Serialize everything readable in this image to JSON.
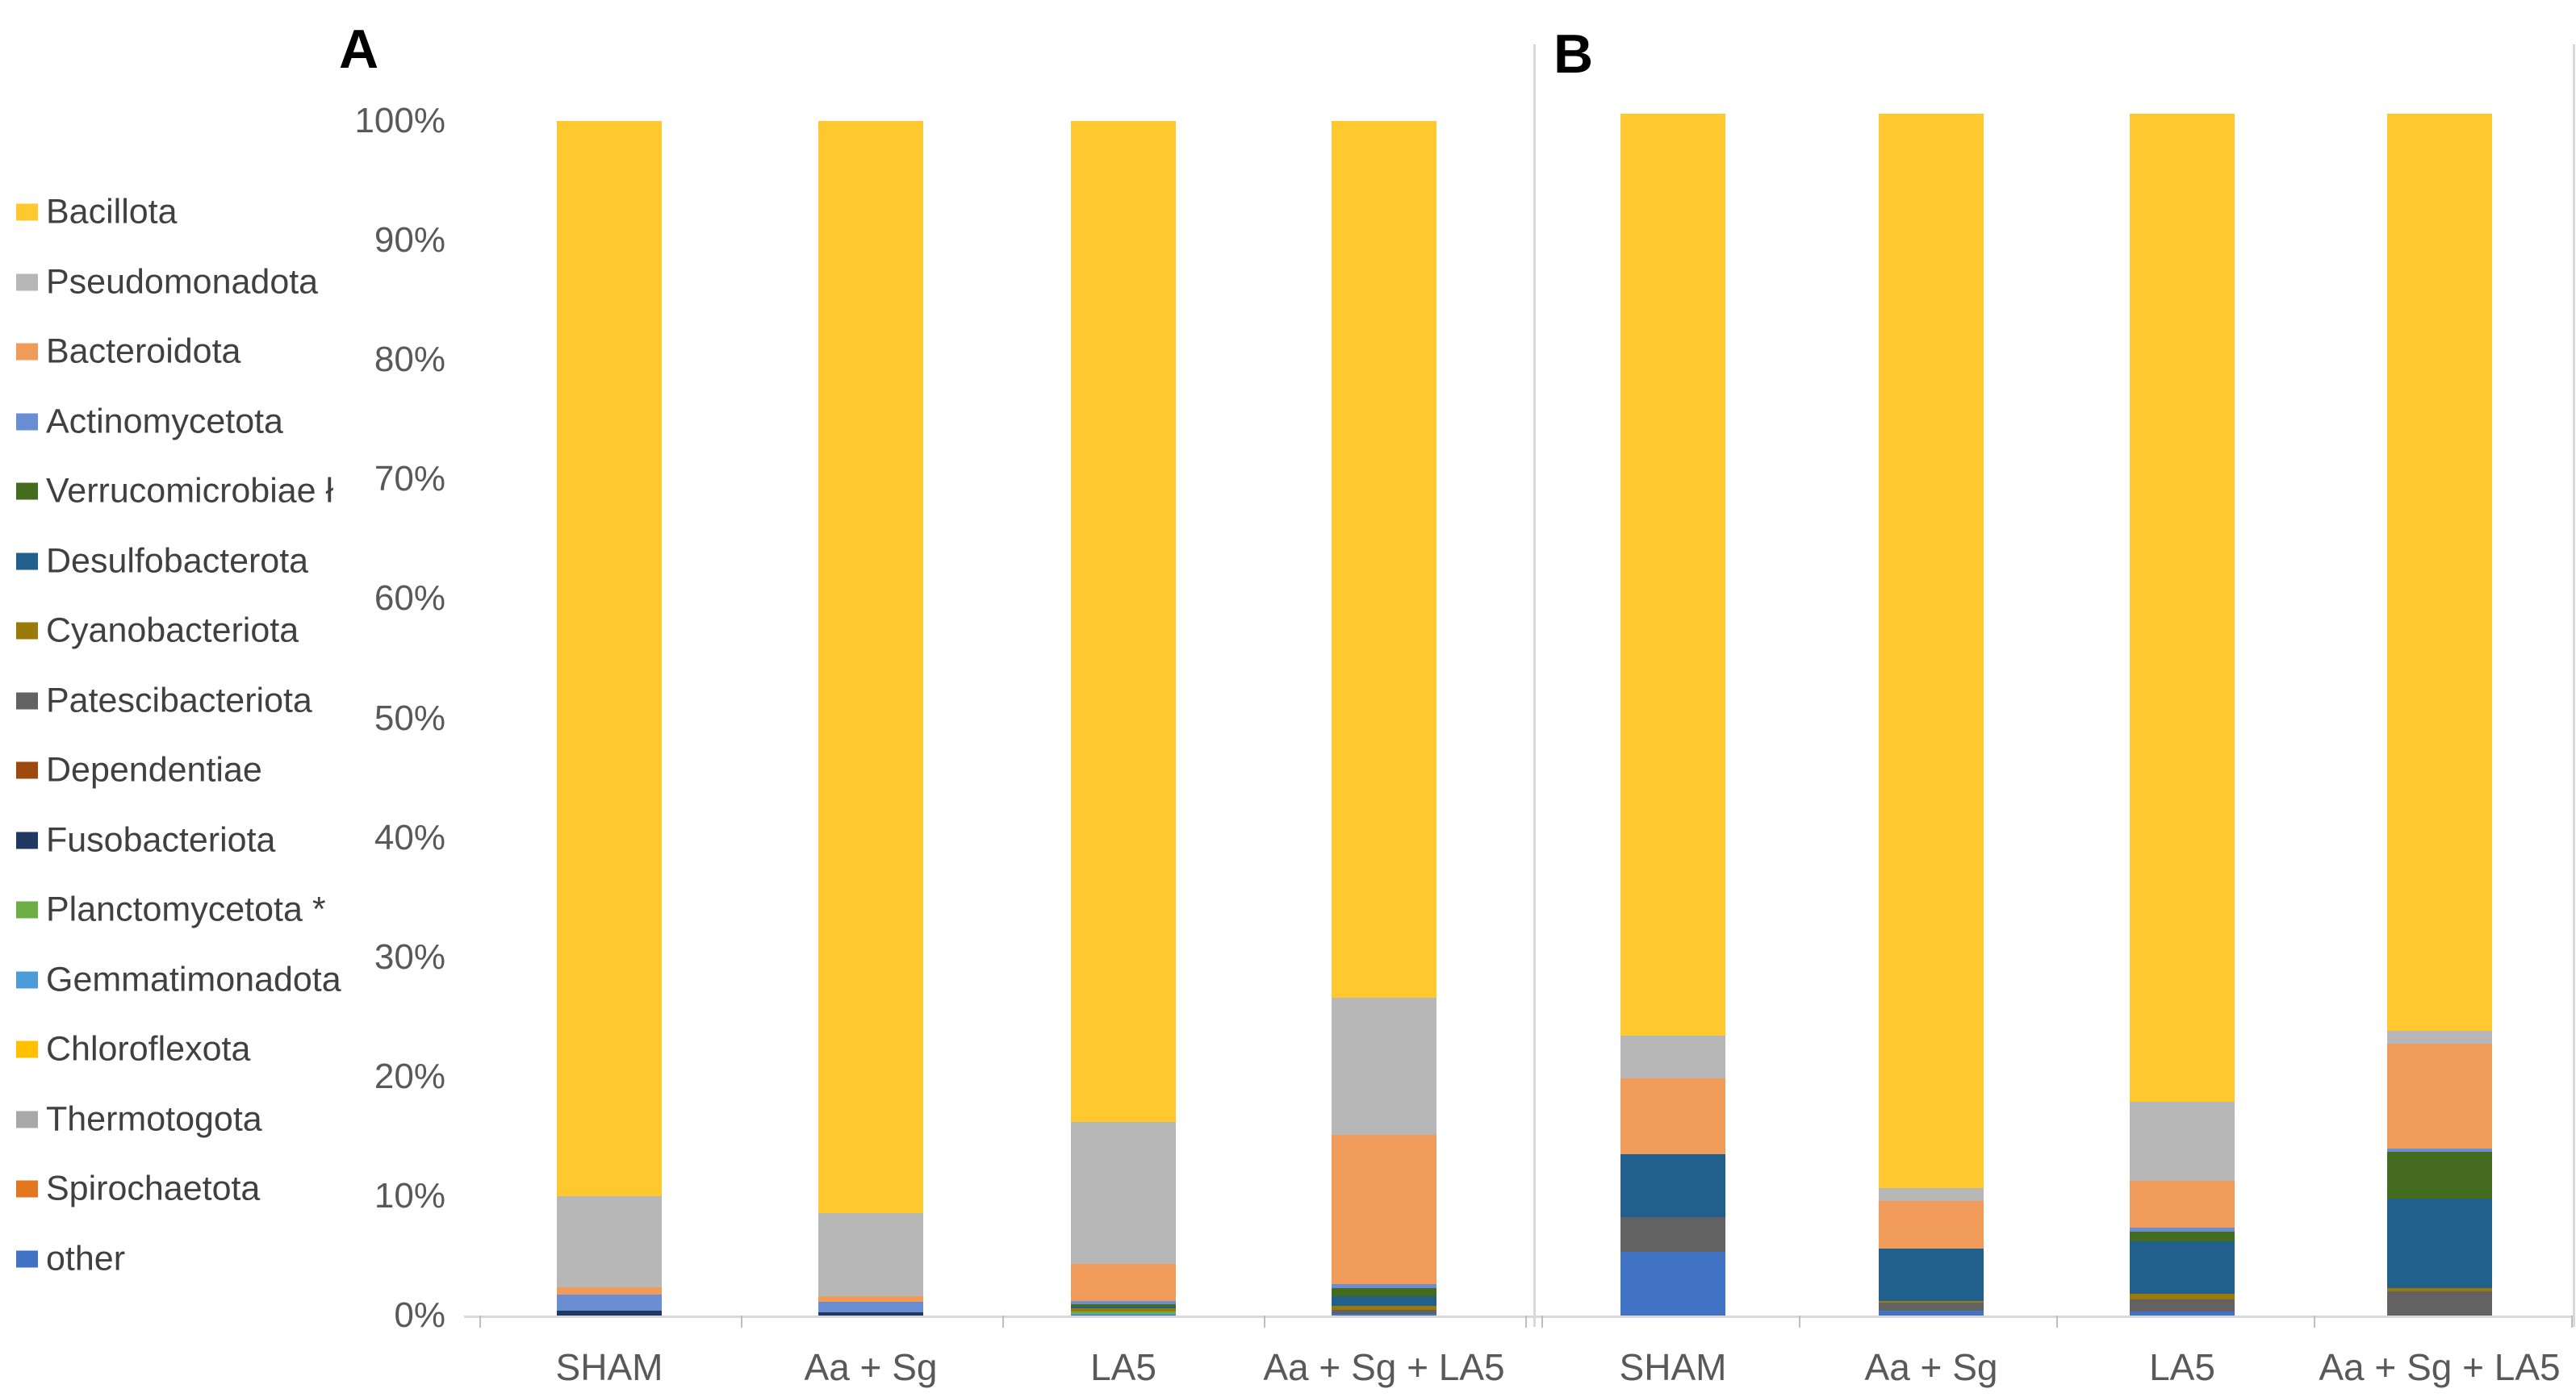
{
  "figure": {
    "panel_a_label": "A",
    "panel_b_label": "B"
  },
  "y_axis": {
    "tick_labels": [
      "100%",
      "90%",
      "80%",
      "70%",
      "60%",
      "50%",
      "40%",
      "30%",
      "20%",
      "10%",
      "0%"
    ]
  },
  "legend": [
    {
      "label": "Bacillota",
      "color": "#FFC82E"
    },
    {
      "label": "Pseudomonadota",
      "color": "#B7B7B7"
    },
    {
      "label": "Bacteroidota",
      "color": "#F09B59"
    },
    {
      "label": "Actinomycetota",
      "color": "#6A8ED1"
    },
    {
      "label": "Verrucomicrobiae ł",
      "color": "#456B1E"
    },
    {
      "label": "Desulfobacterota",
      "color": "#215F8D"
    },
    {
      "label": "Cyanobacteriota",
      "color": "#9A7A08"
    },
    {
      "label": "Patescibacteriota",
      "color": "#626262"
    },
    {
      "label": "Dependentiae",
      "color": "#9E4A0F"
    },
    {
      "label": "Fusobacteriota",
      "color": "#1F3864"
    },
    {
      "label": "Planctomycetota *",
      "color": "#6DAE45"
    },
    {
      "label": "Gemmatimonadota",
      "color": "#4C9CD9"
    },
    {
      "label": "Chloroflexota",
      "color": "#FFC000"
    },
    {
      "label": "Thermotogota",
      "color": "#A8A8A8"
    },
    {
      "label": "Spirochaetota",
      "color": "#E2771F"
    },
    {
      "label": "other",
      "color": "#4173C4"
    }
  ],
  "chart_data": [
    {
      "type": "bar",
      "stacked": true,
      "percent": true,
      "title": "A",
      "categories": [
        "SHAM",
        "Aa + Sg",
        "LA5",
        "Aa + Sg + LA5"
      ],
      "ylim": [
        0,
        100
      ],
      "ytick_step": 10,
      "grid": false,
      "legend_position": "left",
      "stack_order": "first-series-on-top",
      "series": [
        {
          "name": "Bacillota",
          "values": [
            90.0,
            91.4,
            83.8,
            73.4
          ]
        },
        {
          "name": "Pseudomonadota",
          "values": [
            7.65,
            7.0,
            11.9,
            11.5
          ]
        },
        {
          "name": "Bacteroidota",
          "values": [
            0.6,
            0.45,
            3.1,
            12.5
          ]
        },
        {
          "name": "Actinomycetota",
          "values": [
            1.35,
            0.9,
            0.25,
            0.3
          ]
        },
        {
          "name": "Verrucomicrobiae ł",
          "values": [
            0,
            0,
            0.2,
            0.7
          ]
        },
        {
          "name": "Desulfobacterota",
          "values": [
            0,
            0,
            0.15,
            0.8
          ]
        },
        {
          "name": "Cyanobacteriota",
          "values": [
            0,
            0,
            0.25,
            0.35
          ]
        },
        {
          "name": "Patescibacteriota",
          "values": [
            0,
            0,
            0,
            0.3
          ]
        },
        {
          "name": "Dependentiae",
          "values": [
            0,
            0,
            0,
            0
          ]
        },
        {
          "name": "Fusobacteriota",
          "values": [
            0.4,
            0.25,
            0,
            0
          ]
        },
        {
          "name": "Planctomycetota *",
          "values": [
            0,
            0,
            0.2,
            0
          ]
        },
        {
          "name": "Gemmatimonadota",
          "values": [
            0,
            0,
            0.1,
            0
          ]
        },
        {
          "name": "Chloroflexota",
          "values": [
            0,
            0,
            0,
            0
          ]
        },
        {
          "name": "Thermotogota",
          "values": [
            0,
            0,
            0,
            0
          ]
        },
        {
          "name": "Spirochaetota",
          "values": [
            0,
            0,
            0,
            0
          ]
        },
        {
          "name": "other",
          "values": [
            0,
            0,
            0.05,
            0.15
          ]
        }
      ]
    },
    {
      "type": "bar",
      "stacked": true,
      "percent": true,
      "title": "B",
      "categories": [
        "SHAM",
        "Aa + Sg",
        "LA5",
        "Aa + Sg + LA5"
      ],
      "ylim": [
        0,
        100
      ],
      "ytick_step": 10,
      "grid": false,
      "legend_position": "left",
      "stack_order": "first-series-on-top",
      "series": [
        {
          "name": "Bacillota",
          "values": [
            76.7,
            89.4,
            82.2,
            76.3
          ]
        },
        {
          "name": "Pseudomonadota",
          "values": [
            3.6,
            1.1,
            6.6,
            1.1
          ]
        },
        {
          "name": "Bacteroidota",
          "values": [
            6.3,
            3.9,
            3.9,
            8.7
          ]
        },
        {
          "name": "Actinomycetota",
          "values": [
            0,
            0,
            0.3,
            0.3
          ]
        },
        {
          "name": "Verrucomicrobiae ł",
          "values": [
            0,
            0,
            0.8,
            3.9
          ]
        },
        {
          "name": "Desulfobacterota",
          "values": [
            5.2,
            4.4,
            4.4,
            7.4
          ]
        },
        {
          "name": "Cyanobacteriota",
          "values": [
            0,
            0.15,
            0.45,
            0.3
          ]
        },
        {
          "name": "Patescibacteriota",
          "values": [
            2.9,
            0.65,
            1.0,
            2.0
          ]
        },
        {
          "name": "Dependentiae",
          "values": [
            0,
            0,
            0,
            0
          ]
        },
        {
          "name": "Fusobacteriota",
          "values": [
            0,
            0,
            0,
            0
          ]
        },
        {
          "name": "Planctomycetota *",
          "values": [
            0,
            0,
            0,
            0
          ]
        },
        {
          "name": "Gemmatimonadota",
          "values": [
            0,
            0,
            0,
            0
          ]
        },
        {
          "name": "Chloroflexota",
          "values": [
            0,
            0,
            0,
            0
          ]
        },
        {
          "name": "Thermotogota",
          "values": [
            0,
            0,
            0,
            0
          ]
        },
        {
          "name": "Spirochaetota",
          "values": [
            0,
            0,
            0,
            0
          ]
        },
        {
          "name": "other",
          "values": [
            5.3,
            0.4,
            0.35,
            0
          ]
        }
      ]
    }
  ]
}
